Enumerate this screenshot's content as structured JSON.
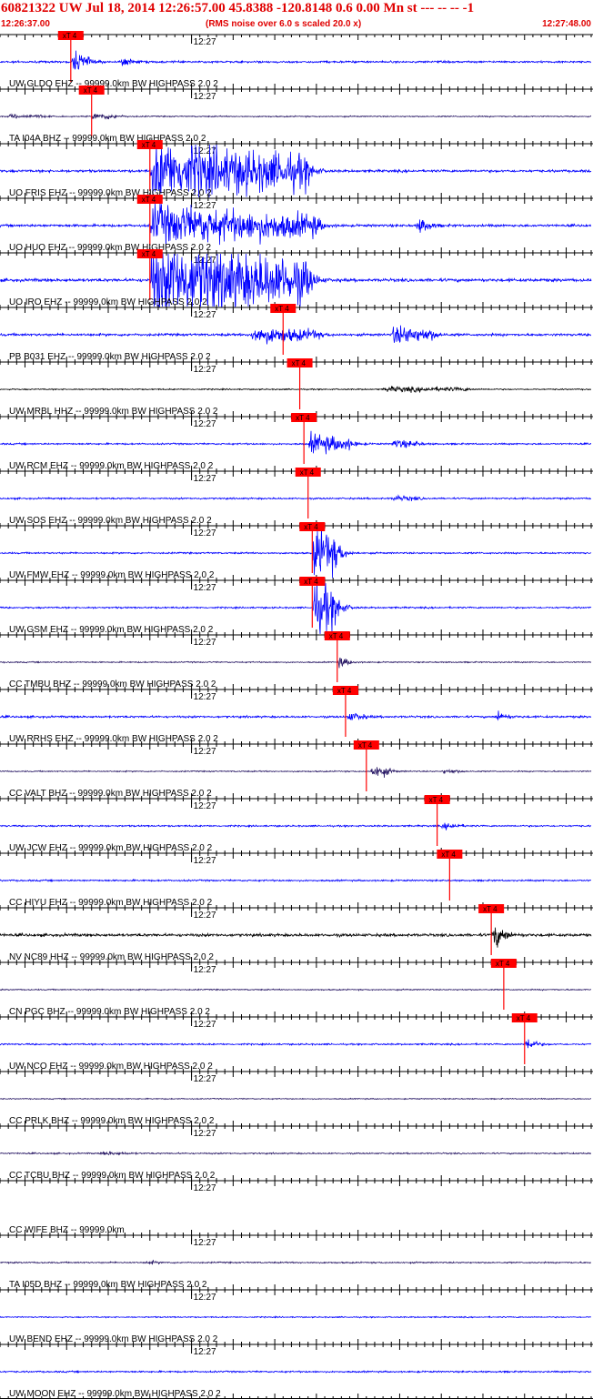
{
  "header": {
    "title": "60821322 UW Jul 18, 2014 12:26:57.00   45.8388 -120.8148  0.6 0.00 Mn st --- -- --  -1",
    "start_time": "12:26:37.00",
    "noise_note": "(RMS noise over 6.0 s scaled 20.0 x)",
    "end_time": "12:27:48.00"
  },
  "chart_data": {
    "type": "line",
    "title": "60821322 UW Jul 18, 2014 12:26:57.00   45.8388 -120.8148  0.6 0.00 Mn st --- -- --  -1",
    "x_start": "12:26:37.00",
    "x_end": "12:27:48.00",
    "x_range_seconds": [
      0,
      71
    ],
    "minute_tick_label": "12:27",
    "minute_tick_second": 23,
    "pick_label": "xT 4",
    "colors": {
      "blue": "#0000ff",
      "black": "#000000",
      "purple": "#2a1a66",
      "red": "#ff0000",
      "text": "#000000"
    },
    "traces": [
      {
        "label": "UW GLDO EHZ -- 99999.0km BW  HIGHPASS  2.0  2",
        "color": "blue",
        "pick_s": 8.5,
        "noise": 0.1,
        "bursts": [
          {
            "t": 8.5,
            "amp": 1.0,
            "dur": 2.0
          },
          {
            "t": 14.5,
            "amp": 0.5,
            "dur": 1.0
          }
        ]
      },
      {
        "label": "TA I04A BHZ -- 99999.0km BW  HIGHPASS  2.0  2",
        "color": "purple",
        "pick_s": 11.0,
        "noise": 0.06,
        "bursts": [
          {
            "t": 1.0,
            "amp": 0.2,
            "dur": 4.0
          },
          {
            "t": 11.0,
            "amp": 0.35,
            "dur": 3.0
          }
        ]
      },
      {
        "label": "UO FRIS EHZ -- 99999.0km BW  HIGHPASS  2.0  2",
        "color": "blue",
        "pick_s": 18.0,
        "noise": 0.12,
        "bursts": [
          {
            "t": 18.0,
            "amp": 3.0,
            "dur": 19.0
          }
        ]
      },
      {
        "label": "UO HUO EHZ -- 99999.0km BW  HIGHPASS  2.0  2",
        "color": "blue",
        "pick_s": 18.0,
        "noise": 0.12,
        "bursts": [
          {
            "t": 18.0,
            "amp": 2.0,
            "dur": 20.0
          },
          {
            "t": 50.0,
            "amp": 0.8,
            "dur": 1.5
          }
        ]
      },
      {
        "label": "UO IRO EHZ -- 99999.0km BW  HIGHPASS  2.0  2",
        "color": "blue",
        "pick_s": 18.0,
        "noise": 0.15,
        "bursts": [
          {
            "t": 18.0,
            "amp": 4.0,
            "dur": 19.0
          }
        ]
      },
      {
        "label": "PB B031 EHZ -- 99999.0km BW  HIGHPASS  2.0  2",
        "color": "blue",
        "pick_s": 34.0,
        "noise": 0.12,
        "bursts": [
          {
            "t": 30.0,
            "amp": 0.8,
            "dur": 8.0
          },
          {
            "t": 47.0,
            "amp": 0.9,
            "dur": 5.0
          }
        ]
      },
      {
        "label": "UW MRBL HHZ -- 99999.0km BW  HIGHPASS  2.0  2",
        "color": "black",
        "pick_s": 36.0,
        "noise": 0.06,
        "bursts": [
          {
            "t": 46.0,
            "amp": 0.25,
            "dur": 10.0
          }
        ]
      },
      {
        "label": "UW RCM EHZ -- 99999.0km BW  HIGHPASS  2.0  2",
        "color": "blue",
        "pick_s": 36.5,
        "noise": 0.08,
        "bursts": [
          {
            "t": 37.0,
            "amp": 1.0,
            "dur": 5.0
          },
          {
            "t": 47.0,
            "amp": 0.4,
            "dur": 3.0
          }
        ]
      },
      {
        "label": "UW SOS EHZ -- 99999.0km BW  HIGHPASS  2.0  2",
        "color": "blue",
        "pick_s": 37.0,
        "noise": 0.08,
        "bursts": [
          {
            "t": 47.0,
            "amp": 0.25,
            "dur": 3.0
          }
        ]
      },
      {
        "label": "UW FMW EHZ -- 99999.0km BW  HIGHPASS  2.0  2",
        "color": "blue",
        "pick_s": 37.5,
        "noise": 0.08,
        "bursts": [
          {
            "t": 37.5,
            "amp": 3.0,
            "dur": 3.0
          }
        ]
      },
      {
        "label": "UW GSM EHZ -- 99999.0km BW  HIGHPASS  2.0  2",
        "color": "blue",
        "pick_s": 37.5,
        "noise": 0.08,
        "bursts": [
          {
            "t": 37.5,
            "amp": 3.0,
            "dur": 3.0
          }
        ]
      },
      {
        "label": "CC TMBU BHZ -- 99999.0km BW  HIGHPASS  2.0  2",
        "color": "purple",
        "pick_s": 40.5,
        "noise": 0.06,
        "bursts": [
          {
            "t": 40.5,
            "amp": 0.6,
            "dur": 1.0
          }
        ]
      },
      {
        "label": "UW RRHS EHZ -- 99999.0km BW  HIGHPASS  2.0  2",
        "color": "blue",
        "pick_s": 41.5,
        "noise": 0.1,
        "bursts": [
          {
            "t": 41.5,
            "amp": 0.4,
            "dur": 2.0
          },
          {
            "t": 59.5,
            "amp": 0.6,
            "dur": 1.0
          }
        ]
      },
      {
        "label": "CC VALT BHZ -- 99999.0km BW  HIGHPASS  2.0  2",
        "color": "purple",
        "pick_s": 44.0,
        "noise": 0.06,
        "bursts": [
          {
            "t": 44.5,
            "amp": 0.7,
            "dur": 2.0
          },
          {
            "t": 53.0,
            "amp": 0.2,
            "dur": 2.0
          }
        ]
      },
      {
        "label": "UW JCW EHZ -- 99999.0km BW  HIGHPASS  2.0  2",
        "color": "blue",
        "pick_s": 52.5,
        "noise": 0.08,
        "bursts": [
          {
            "t": 53.0,
            "amp": 0.3,
            "dur": 2.0
          }
        ]
      },
      {
        "label": "CC HIYU EHZ -- 99999.0km BW  HIGHPASS  2.0  2",
        "color": "blue",
        "pick_s": 54.0,
        "noise": 0.08,
        "bursts": []
      },
      {
        "label": "NV NC89 HHZ -- 99999.0km BW  HIGHPASS  2.0  2",
        "color": "black",
        "pick_s": 59.0,
        "noise": 0.14,
        "bursts": [
          {
            "t": 59.0,
            "amp": 1.2,
            "dur": 1.5
          }
        ]
      },
      {
        "label": "CN PGC BHZ -- 99999.0km BW  HIGHPASS  2.0  2",
        "color": "purple",
        "pick_s": 60.5,
        "noise": 0.06,
        "bursts": []
      },
      {
        "label": "UW NCO EHZ -- 99999.0km BW  HIGHPASS  2.0  2",
        "color": "blue",
        "pick_s": 63.0,
        "noise": 0.08,
        "bursts": [
          {
            "t": 63.0,
            "amp": 0.8,
            "dur": 1.0
          }
        ]
      },
      {
        "label": "CC PRLK BHZ -- 99999.0km BW  HIGHPASS  2.0  2",
        "color": "purple",
        "noise": 0.05,
        "bursts": []
      },
      {
        "label": "CC TCBU BHZ -- 99999.0km BW  HIGHPASS  2.0  2",
        "color": "purple",
        "noise": 0.07,
        "bursts": [
          {
            "t": 12.0,
            "amp": 0.15,
            "dur": 3.0
          }
        ]
      },
      {
        "label": "CC WIFE BHZ -- 99999.0km",
        "color": "none",
        "noise": 0,
        "bursts": []
      },
      {
        "label": "TA I05D BHZ -- 99999.0km BW  HIGHPASS  2.0  2",
        "color": "purple",
        "noise": 0.07,
        "bursts": [
          {
            "t": 17.5,
            "amp": 0.2,
            "dur": 1.0
          }
        ]
      },
      {
        "label": "UW BEND EHZ -- 99999.0km BW  HIGHPASS  2.0  2",
        "color": "blue",
        "noise": 0.06,
        "bursts": []
      },
      {
        "label": "UW MOON EHZ -- 99999.0km BW  HIGHPASS  2.0  2",
        "color": "blue",
        "noise": 0.08,
        "bursts": []
      }
    ]
  }
}
